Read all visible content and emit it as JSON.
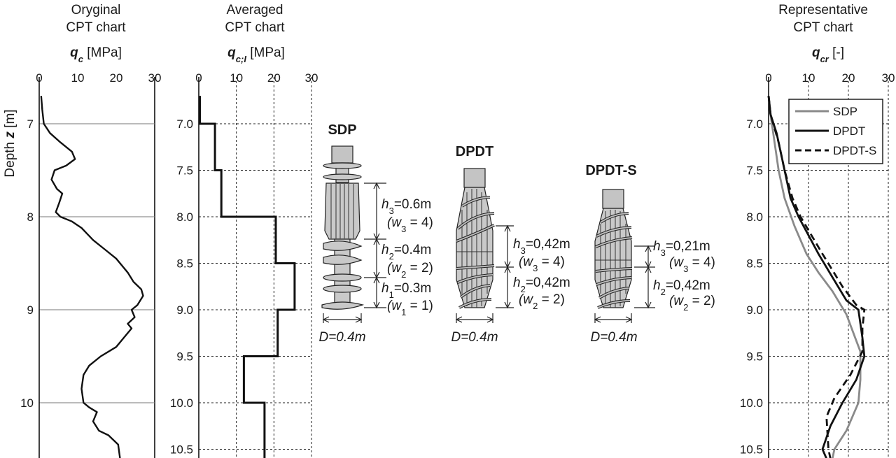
{
  "chart_data": [
    {
      "type": "line",
      "title": "Oryginal CPT chart",
      "title_lines": [
        "Oryginal",
        "CPT chart"
      ],
      "xlabel_symbol": "q",
      "xlabel_sub": "c",
      "xlabel_unit": " [MPa]",
      "ylabel_prefix": "Depth ",
      "ylabel_symbol": "z",
      "ylabel_unit": " [m]",
      "xlim": [
        0,
        30
      ],
      "ylim": [
        6.7,
        10.6
      ],
      "xticks": [
        "0",
        "10",
        "20",
        "30"
      ],
      "yticks": [
        "7",
        "8",
        "9",
        "10"
      ],
      "grid": "solid horizontal only",
      "series": [
        {
          "points": [
            [
              0.5,
              6.7
            ],
            [
              0.8,
              6.85
            ],
            [
              1.2,
              7.0
            ],
            [
              2.8,
              7.1
            ],
            [
              5.5,
              7.2
            ],
            [
              8.5,
              7.3
            ],
            [
              9.3,
              7.38
            ],
            [
              7.0,
              7.45
            ],
            [
              4.0,
              7.5
            ],
            [
              3.2,
              7.6
            ],
            [
              4.6,
              7.7
            ],
            [
              6.0,
              7.75
            ],
            [
              5.2,
              7.85
            ],
            [
              4.3,
              7.95
            ],
            [
              5.5,
              8.0
            ],
            [
              8.5,
              8.05
            ],
            [
              11.0,
              8.12
            ],
            [
              14.0,
              8.25
            ],
            [
              17.0,
              8.35
            ],
            [
              20.0,
              8.45
            ],
            [
              23.0,
              8.6
            ],
            [
              24.5,
              8.7
            ],
            [
              26.5,
              8.78
            ],
            [
              27.0,
              8.85
            ],
            [
              25.5,
              8.95
            ],
            [
              24.0,
              9.0
            ],
            [
              24.8,
              9.08
            ],
            [
              23.0,
              9.15
            ],
            [
              24.0,
              9.2
            ],
            [
              22.0,
              9.3
            ],
            [
              20.0,
              9.4
            ],
            [
              16.0,
              9.5
            ],
            [
              13.0,
              9.6
            ],
            [
              11.5,
              9.7
            ],
            [
              11.0,
              9.85
            ],
            [
              11.5,
              10.0
            ],
            [
              13.0,
              10.05
            ],
            [
              15.0,
              10.1
            ],
            [
              14.0,
              10.2
            ],
            [
              15.5,
              10.3
            ],
            [
              18.0,
              10.35
            ],
            [
              20.5,
              10.45
            ],
            [
              21.0,
              10.6
            ]
          ]
        }
      ]
    },
    {
      "type": "line",
      "title": "Averaged CPT chart",
      "title_lines": [
        "Averaged",
        "CPT chart"
      ],
      "xlabel_symbol": "q",
      "xlabel_sub": "c;I",
      "xlabel_unit": " [MPa]",
      "xlim": [
        0,
        30
      ],
      "ylim": [
        6.7,
        10.6
      ],
      "xticks": [
        "0",
        "10",
        "20",
        "30"
      ],
      "yticks": [
        "7.0",
        "7.5",
        "8.0",
        "8.5",
        "9.0",
        "9.5",
        "10.0",
        "10.5"
      ],
      "grid": "dashed",
      "series": [
        {
          "steps": [
            [
              0.3,
              6.7,
              7.0
            ],
            [
              4.3,
              7.0,
              7.5
            ],
            [
              6.0,
              7.5,
              8.0
            ],
            [
              20.5,
              8.0,
              8.5
            ],
            [
              25.5,
              8.5,
              9.0
            ],
            [
              21.0,
              9.0,
              9.5
            ],
            [
              12.0,
              9.5,
              10.0
            ],
            [
              17.5,
              10.0,
              10.6
            ]
          ]
        }
      ]
    },
    {
      "type": "line",
      "title": "Representative CPT chart",
      "title_lines": [
        "Representative",
        "CPT chart"
      ],
      "xlabel_symbol": "q",
      "xlabel_sub": "cr",
      "xlabel_unit": " [-]",
      "xlim": [
        0,
        30
      ],
      "ylim": [
        6.7,
        10.6
      ],
      "xticks": [
        "0",
        "10",
        "20",
        "30"
      ],
      "yticks": [
        "7.0",
        "7.5",
        "8.0",
        "8.5",
        "9.0",
        "9.5",
        "10.0",
        "10.5"
      ],
      "grid": "dashed",
      "legend_position": "top-right",
      "series": [
        {
          "name": "SDP",
          "color": "#8a8a8a",
          "dash": "solid",
          "points": [
            [
              0,
              6.7
            ],
            [
              0.5,
              6.9
            ],
            [
              1.5,
              7.2
            ],
            [
              2.5,
              7.5
            ],
            [
              4.0,
              7.8
            ],
            [
              6.5,
              8.1
            ],
            [
              9.5,
              8.4
            ],
            [
              12.5,
              8.6
            ],
            [
              16.0,
              8.8
            ],
            [
              19.5,
              9.05
            ],
            [
              23.0,
              9.45
            ],
            [
              23.0,
              9.75
            ],
            [
              22.5,
              10.0
            ],
            [
              19.5,
              10.3
            ],
            [
              16.5,
              10.5
            ],
            [
              16.0,
              10.6
            ]
          ]
        },
        {
          "name": "DPDT",
          "color": "#111111",
          "dash": "solid",
          "points": [
            [
              0,
              6.7
            ],
            [
              0.5,
              6.9
            ],
            [
              2.0,
              7.1
            ],
            [
              3.5,
              7.4
            ],
            [
              5.5,
              7.8
            ],
            [
              7.5,
              8.0
            ],
            [
              12.5,
              8.4
            ],
            [
              16.0,
              8.65
            ],
            [
              19.5,
              8.9
            ],
            [
              22.5,
              9.0
            ],
            [
              23.5,
              9.3
            ],
            [
              24.0,
              9.5
            ],
            [
              22.0,
              9.75
            ],
            [
              18.5,
              10.0
            ],
            [
              15.5,
              10.25
            ],
            [
              13.5,
              10.5
            ],
            [
              14.5,
              10.6
            ]
          ]
        },
        {
          "name": "DPDT-S",
          "color": "#111111",
          "dash": "dashed",
          "points": [
            [
              0,
              6.7
            ],
            [
              0.5,
              6.9
            ],
            [
              2.5,
              7.2
            ],
            [
              4.0,
              7.5
            ],
            [
              6.0,
              7.8
            ],
            [
              8.0,
              8.0
            ],
            [
              13.5,
              8.4
            ],
            [
              18.5,
              8.75
            ],
            [
              22.0,
              8.95
            ],
            [
              24.0,
              9.0
            ],
            [
              23.5,
              9.2
            ],
            [
              23.5,
              9.45
            ],
            [
              20.5,
              9.7
            ],
            [
              16.5,
              9.95
            ],
            [
              14.5,
              10.15
            ],
            [
              15.0,
              10.5
            ],
            [
              15.5,
              10.6
            ]
          ]
        }
      ]
    }
  ],
  "figure": {
    "piles": [
      {
        "name": "SDP",
        "diameter_label": "D=0.4m",
        "dims": [
          {
            "h_sym": "h",
            "h_sub": "3",
            "h_val": "=0.6m",
            "w_sym": "(w",
            "w_sub": "3",
            "w_val": " = 4)"
          },
          {
            "h_sym": "h",
            "h_sub": "2",
            "h_val": "=0.4m",
            "w_sym": "(w",
            "w_sub": "2",
            "w_val": " = 2)"
          },
          {
            "h_sym": "h",
            "h_sub": "1",
            "h_val": "=0.3m",
            "w_sym": "(w",
            "w_sub": "1",
            "w_val": " = 1)"
          }
        ]
      },
      {
        "name": "DPDT",
        "diameter_label": "D=0.4m",
        "dims": [
          {
            "h_sym": "h",
            "h_sub": "3",
            "h_val": "=0,42m",
            "w_sym": "(w",
            "w_sub": "3",
            "w_val": " = 4)"
          },
          {
            "h_sym": "h",
            "h_sub": "2",
            "h_val": "=0,42m",
            "w_sym": "(w",
            "w_sub": "2",
            "w_val": " = 2)"
          }
        ]
      },
      {
        "name": "DPDT-S",
        "diameter_label": "D=0.4m",
        "dims": [
          {
            "h_sym": "h",
            "h_sub": "3",
            "h_val": "=0,21m",
            "w_sym": "(w",
            "w_sub": "3",
            "w_val": " = 4)"
          },
          {
            "h_sym": "h",
            "h_sub": "2",
            "h_val": "=0,42m",
            "w_sym": "(w",
            "w_sub": "2",
            "w_val": " = 2)"
          }
        ]
      }
    ]
  }
}
